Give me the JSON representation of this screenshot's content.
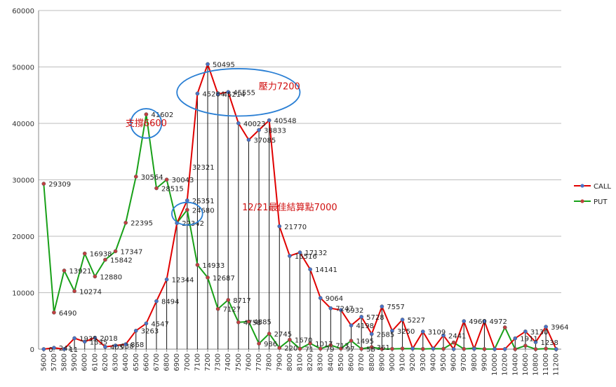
{
  "chart_data": {
    "type": "line",
    "ylim": [
      0,
      60000
    ],
    "yticks": [
      0,
      10000,
      20000,
      30000,
      40000,
      50000,
      60000
    ],
    "grid": true,
    "legend": "right",
    "categories": [
      "5600",
      "5700",
      "5800",
      "5900",
      "6000",
      "6100",
      "6200",
      "6300",
      "6400",
      "6500",
      "6600",
      "6700",
      "6800",
      "6900",
      "7000",
      "7100",
      "7200",
      "7300",
      "7400",
      "7500",
      "7600",
      "7700",
      "7800",
      "7900",
      "8000",
      "8100",
      "8200",
      "8300",
      "8400",
      "8500",
      "8600",
      "8700",
      "8800",
      "8900",
      "9000",
      "9100",
      "9200",
      "9300",
      "9400",
      "9500",
      "9600",
      "9700",
      "9800",
      "9900",
      "10000",
      "10200",
      "10400",
      "10600",
      "10800",
      "11000",
      "11200"
    ],
    "series": [
      {
        "name": "CALL",
        "color": "#e00000",
        "values": [
          0,
          241,
          11,
          1935,
          1335,
          2018,
          405,
          638,
          868,
          3263,
          4547,
          8494,
          12344,
          22342,
          26351,
          45284,
          50495,
          45214,
          45555,
          40023,
          37085,
          38833,
          40548,
          21770,
          16516,
          17132,
          14141,
          9064,
          7247,
          6932,
          4198,
          5728,
          2685,
          7557,
          3250,
          5227,
          105,
          3109,
          93,
          2441,
          14,
          4960,
          54,
          4972,
          10,
          15,
          1911,
          3130,
          1238,
          3964,
          0
        ]
      },
      {
        "name": "PUT",
        "color": "#18a018",
        "values": [
          29309,
          6490,
          13921,
          10274,
          16938,
          12880,
          15842,
          17347,
          22395,
          30564,
          41602,
          28515,
          30043,
          22342,
          24680,
          14933,
          12687,
          7127,
          8717,
          4758,
          4885,
          986,
          2745,
          220,
          1670,
          71,
          1017,
          79,
          713,
          97,
          1495,
          58,
          361,
          32,
          52,
          105,
          90,
          35,
          95,
          57,
          1175,
          41,
          185,
          15,
          34,
          3851,
          2,
          610,
          0,
          91,
          0
        ]
      }
    ],
    "data_labels": [
      {
        "text": "29309",
        "x": "5600",
        "y": 29309
      },
      {
        "text": "6490",
        "x": "5700",
        "y": 6490
      },
      {
        "text": "13921",
        "x": "5800",
        "y": 13921
      },
      {
        "text": "10274",
        "x": "5900",
        "y": 10274
      },
      {
        "text": "16938",
        "x": "6000",
        "y": 16938
      },
      {
        "text": "12880",
        "x": "6100",
        "y": 12880
      },
      {
        "text": "15842",
        "x": "6200",
        "y": 15842
      },
      {
        "text": "17347",
        "x": "6300",
        "y": 17347
      },
      {
        "text": "22395",
        "x": "6400",
        "y": 22395
      },
      {
        "text": "30564",
        "x": "6500",
        "y": 30564
      },
      {
        "text": "41602",
        "x": "6600",
        "y": 41602
      },
      {
        "text": "28515",
        "x": "6700",
        "y": 28515
      },
      {
        "text": "30043",
        "x": "6800",
        "y": 30043
      },
      {
        "text": "22342",
        "x": "6900",
        "y": 22342
      },
      {
        "text": "26351",
        "x": "7000",
        "y": 26351
      },
      {
        "text": "24680",
        "x": "7000",
        "y": 24680
      },
      {
        "text": "32321",
        "x": "7000",
        "y": 32321
      },
      {
        "text": "14933",
        "x": "7100",
        "y": 14933
      },
      {
        "text": "12687",
        "x": "7200",
        "y": 12687
      },
      {
        "text": "7127",
        "x": "7300",
        "y": 7127
      },
      {
        "text": "8717",
        "x": "7400",
        "y": 8717
      },
      {
        "text": "4758",
        "x": "7500",
        "y": 4758
      },
      {
        "text": "4885",
        "x": "7600",
        "y": 4885
      },
      {
        "text": "986",
        "x": "7700",
        "y": 986
      },
      {
        "text": "2745",
        "x": "7800",
        "y": 2745
      },
      {
        "text": "220",
        "x": "7900",
        "y": 220
      },
      {
        "text": "1670",
        "x": "8000",
        "y": 1670
      },
      {
        "text": "71",
        "x": "8100",
        "y": 71
      },
      {
        "text": "1017",
        "x": "8200",
        "y": 1017
      },
      {
        "text": "79",
        "x": "8300",
        "y": 79
      },
      {
        "text": "713",
        "x": "8400",
        "y": 713
      },
      {
        "text": "97",
        "x": "8500",
        "y": 97
      },
      {
        "text": "1495",
        "x": "8600",
        "y": 1495
      },
      {
        "text": "58",
        "x": "8700",
        "y": 58
      },
      {
        "text": "361",
        "x": "8800",
        "y": 361
      },
      {
        "text": "0",
        "x": "5600",
        "y": 0
      },
      {
        "text": "241",
        "x": "5700",
        "y": 241
      },
      {
        "text": "11",
        "x": "5800",
        "y": 11
      },
      {
        "text": "1935",
        "x": "5900",
        "y": 1935
      },
      {
        "text": "1335",
        "x": "6000",
        "y": 1335
      },
      {
        "text": "2018",
        "x": "6100",
        "y": 2018
      },
      {
        "text": "405",
        "x": "6200",
        "y": 405
      },
      {
        "text": "638",
        "x": "6300",
        "y": 638
      },
      {
        "text": "868",
        "x": "6400",
        "y": 868
      },
      {
        "text": "3263",
        "x": "6500",
        "y": 3263
      },
      {
        "text": "4547",
        "x": "6600",
        "y": 4547
      },
      {
        "text": "8494",
        "x": "6700",
        "y": 8494
      },
      {
        "text": "12344",
        "x": "6800",
        "y": 12344
      },
      {
        "text": "45284",
        "x": "7100",
        "y": 45284
      },
      {
        "text": "50495",
        "x": "7200",
        "y": 50495
      },
      {
        "text": "45214",
        "x": "7300",
        "y": 45214
      },
      {
        "text": "45555",
        "x": "7400",
        "y": 45555
      },
      {
        "text": "40023",
        "x": "7500",
        "y": 40023
      },
      {
        "text": "37085",
        "x": "7600",
        "y": 37085
      },
      {
        "text": "38833",
        "x": "7700",
        "y": 38833
      },
      {
        "text": "40548",
        "x": "7800",
        "y": 40548
      },
      {
        "text": "21770",
        "x": "7900",
        "y": 21770
      },
      {
        "text": "16516",
        "x": "8000",
        "y": 16516
      },
      {
        "text": "17132",
        "x": "8100",
        "y": 17132
      },
      {
        "text": "14141",
        "x": "8200",
        "y": 14141
      },
      {
        "text": "9064",
        "x": "8300",
        "y": 9064
      },
      {
        "text": "7247",
        "x": "8400",
        "y": 7247
      },
      {
        "text": "6932",
        "x": "8500",
        "y": 6932
      },
      {
        "text": "4198",
        "x": "8600",
        "y": 4198
      },
      {
        "text": "5728",
        "x": "8700",
        "y": 5728
      },
      {
        "text": "2685",
        "x": "8800",
        "y": 2685
      },
      {
        "text": "7557",
        "x": "8900",
        "y": 7557
      },
      {
        "text": "3250",
        "x": "9000",
        "y": 3250
      },
      {
        "text": "5227",
        "x": "9100",
        "y": 5227
      },
      {
        "text": "3109",
        "x": "9300",
        "y": 3109
      },
      {
        "text": "2441",
        "x": "9500",
        "y": 2441
      },
      {
        "text": "4960",
        "x": "9700",
        "y": 4960
      },
      {
        "text": "4972",
        "x": "9900",
        "y": 4972
      },
      {
        "text": "1911",
        "x": "10400",
        "y": 1911
      },
      {
        "text": "3130",
        "x": "10600",
        "y": 3130
      },
      {
        "text": "1238",
        "x": "10800",
        "y": 1238
      },
      {
        "text": "3964",
        "x": "11000",
        "y": 3964
      }
    ],
    "annotations": [
      {
        "text": "支撐6600",
        "x": "6600",
        "y": 39500
      },
      {
        "text": "壓力7200",
        "x": "7900",
        "y": 46000
      },
      {
        "text": "12/21最佳結算點7000",
        "x": "8000",
        "y": 24600
      }
    ],
    "highlight_ellipses": [
      {
        "x": "6600",
        "y": 40000,
        "rx": 1.5,
        "ry": 2600
      },
      {
        "x": "7000",
        "y": 24000,
        "rx": 1.5,
        "ry": 2000
      },
      {
        "x": "7500",
        "y": 45500,
        "rx": 6.0,
        "ry": 4200
      }
    ]
  }
}
